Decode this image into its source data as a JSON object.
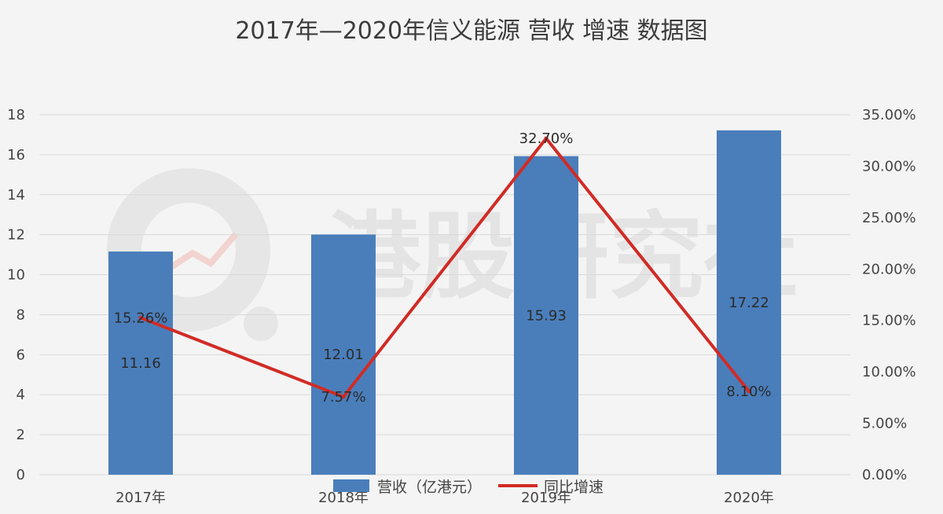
{
  "chart_data": {
    "type": "bar",
    "title": "2017年—2020年信义能源 营收 增速 数据图",
    "categories": [
      "2017年",
      "2018年",
      "2019年",
      "2020年"
    ],
    "series": [
      {
        "name": "营收（亿港元）",
        "type": "bar",
        "axis": "left",
        "color": "#4a7ebb",
        "values": [
          11.16,
          12.01,
          15.93,
          17.22
        ],
        "labels": [
          "11.16",
          "12.01",
          "15.93",
          "17.22"
        ]
      },
      {
        "name": "同比增速",
        "type": "line",
        "axis": "right",
        "color": "#d12b25",
        "values": [
          15.26,
          7.57,
          32.7,
          8.1
        ],
        "labels": [
          "15.26%",
          "7.57%",
          "32.70%",
          "8.10%"
        ]
      }
    ],
    "y_left": {
      "min": 0,
      "max": 18,
      "step": 2,
      "ticks": [
        "0",
        "2",
        "4",
        "6",
        "8",
        "10",
        "12",
        "14",
        "16",
        "18"
      ]
    },
    "y_right": {
      "min": 0,
      "max": 35,
      "step": 5,
      "ticks": [
        "0.00%",
        "5.00%",
        "10.00%",
        "15.00%",
        "20.00%",
        "25.00%",
        "30.00%",
        "35.00%"
      ]
    },
    "grid": true,
    "legend_position": "bottom"
  },
  "watermark": {
    "text": "港股研究社"
  }
}
